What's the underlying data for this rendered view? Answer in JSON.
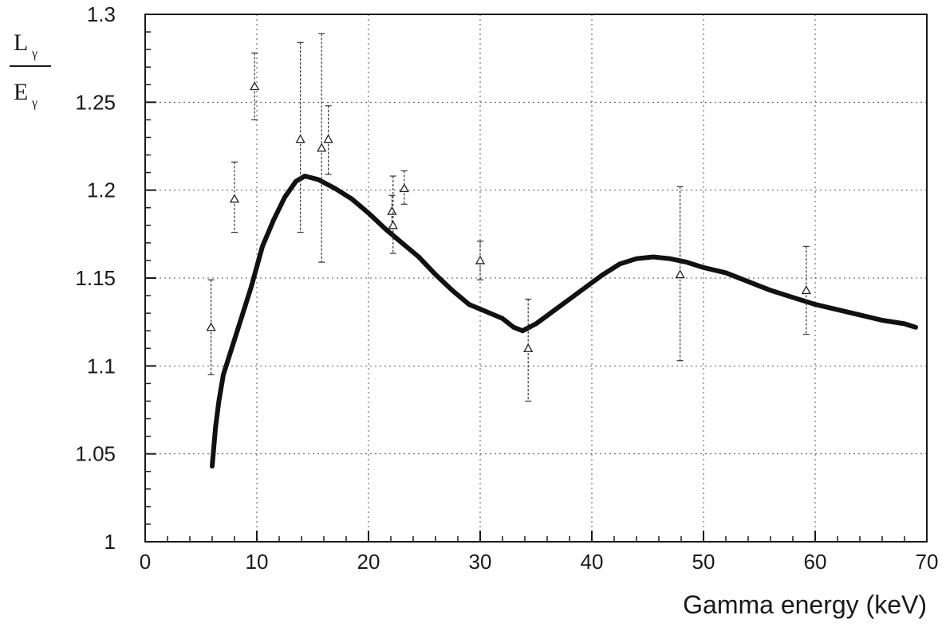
{
  "chart_data": {
    "type": "scatter",
    "title": "",
    "xlabel": "Gamma energy (keV)",
    "ylabel": {
      "numerator": "L",
      "numerator_sub": "γ",
      "denominator": "E",
      "denominator_sub": "γ"
    },
    "xlim": [
      0,
      70
    ],
    "ylim": [
      1,
      1.3
    ],
    "x_ticks": [
      0,
      10,
      20,
      30,
      40,
      50,
      60,
      70
    ],
    "x_tick_labels": [
      "0",
      "10",
      "20",
      "30",
      "40",
      "50",
      "60",
      "70"
    ],
    "y_ticks": [
      1,
      1.05,
      1.1,
      1.15,
      1.2,
      1.25,
      1.3
    ],
    "y_tick_labels": [
      "1",
      "1.05",
      "1.1",
      "1.15",
      "1.2",
      "1.25",
      "1.3"
    ],
    "grid": true,
    "series": [
      {
        "kind": "points_with_errorbars",
        "marker": "open-triangle",
        "points": [
          {
            "x": 5.9,
            "y": 1.122,
            "err_low": 1.095,
            "err_high": 1.149
          },
          {
            "x": 8.0,
            "y": 1.195,
            "err_low": 1.176,
            "err_high": 1.216
          },
          {
            "x": 9.8,
            "y": 1.259,
            "err_low": 1.24,
            "err_high": 1.278
          },
          {
            "x": 13.9,
            "y": 1.229,
            "err_low": 1.176,
            "err_high": 1.284
          },
          {
            "x": 15.8,
            "y": 1.224,
            "err_low": 1.159,
            "err_high": 1.289
          },
          {
            "x": 16.4,
            "y": 1.229,
            "err_low": 1.209,
            "err_high": 1.248
          },
          {
            "x": 22.1,
            "y": 1.188,
            "err_low": 1.179,
            "err_high": 1.197
          },
          {
            "x": 22.2,
            "y": 1.18,
            "err_low": 1.164,
            "err_high": 1.208
          },
          {
            "x": 23.2,
            "y": 1.201,
            "err_low": 1.192,
            "err_high": 1.211
          },
          {
            "x": 30.0,
            "y": 1.16,
            "err_low": 1.149,
            "err_high": 1.171
          },
          {
            "x": 34.3,
            "y": 1.11,
            "err_low": 1.08,
            "err_high": 1.138
          },
          {
            "x": 47.9,
            "y": 1.152,
            "err_low": 1.103,
            "err_high": 1.202
          },
          {
            "x": 59.2,
            "y": 1.143,
            "err_low": 1.118,
            "err_high": 1.168
          }
        ]
      },
      {
        "kind": "curve",
        "points": [
          [
            6.0,
            1.043
          ],
          [
            6.3,
            1.065
          ],
          [
            6.6,
            1.08
          ],
          [
            7.0,
            1.095
          ],
          [
            7.5,
            1.105
          ],
          [
            8.5,
            1.125
          ],
          [
            9.5,
            1.145
          ],
          [
            10.5,
            1.168
          ],
          [
            11.5,
            1.183
          ],
          [
            12.5,
            1.196
          ],
          [
            13.5,
            1.205
          ],
          [
            14.3,
            1.208
          ],
          [
            15.5,
            1.206
          ],
          [
            17.0,
            1.201
          ],
          [
            18.5,
            1.195
          ],
          [
            20.0,
            1.187
          ],
          [
            21.5,
            1.178
          ],
          [
            23.0,
            1.17
          ],
          [
            24.5,
            1.162
          ],
          [
            26.0,
            1.152
          ],
          [
            27.5,
            1.143
          ],
          [
            29.0,
            1.135
          ],
          [
            30.5,
            1.131
          ],
          [
            32.0,
            1.127
          ],
          [
            33.0,
            1.122
          ],
          [
            33.8,
            1.12
          ],
          [
            35.0,
            1.124
          ],
          [
            36.5,
            1.131
          ],
          [
            38.0,
            1.138
          ],
          [
            39.5,
            1.145
          ],
          [
            41.0,
            1.152
          ],
          [
            42.5,
            1.158
          ],
          [
            44.0,
            1.161
          ],
          [
            45.5,
            1.162
          ],
          [
            47.0,
            1.161
          ],
          [
            48.5,
            1.159
          ],
          [
            50.0,
            1.156
          ],
          [
            52.0,
            1.153
          ],
          [
            54.0,
            1.148
          ],
          [
            56.0,
            1.143
          ],
          [
            58.0,
            1.139
          ],
          [
            60.0,
            1.135
          ],
          [
            62.0,
            1.132
          ],
          [
            64.0,
            1.129
          ],
          [
            66.0,
            1.126
          ],
          [
            68.0,
            1.124
          ],
          [
            69.0,
            1.122
          ]
        ]
      }
    ]
  }
}
